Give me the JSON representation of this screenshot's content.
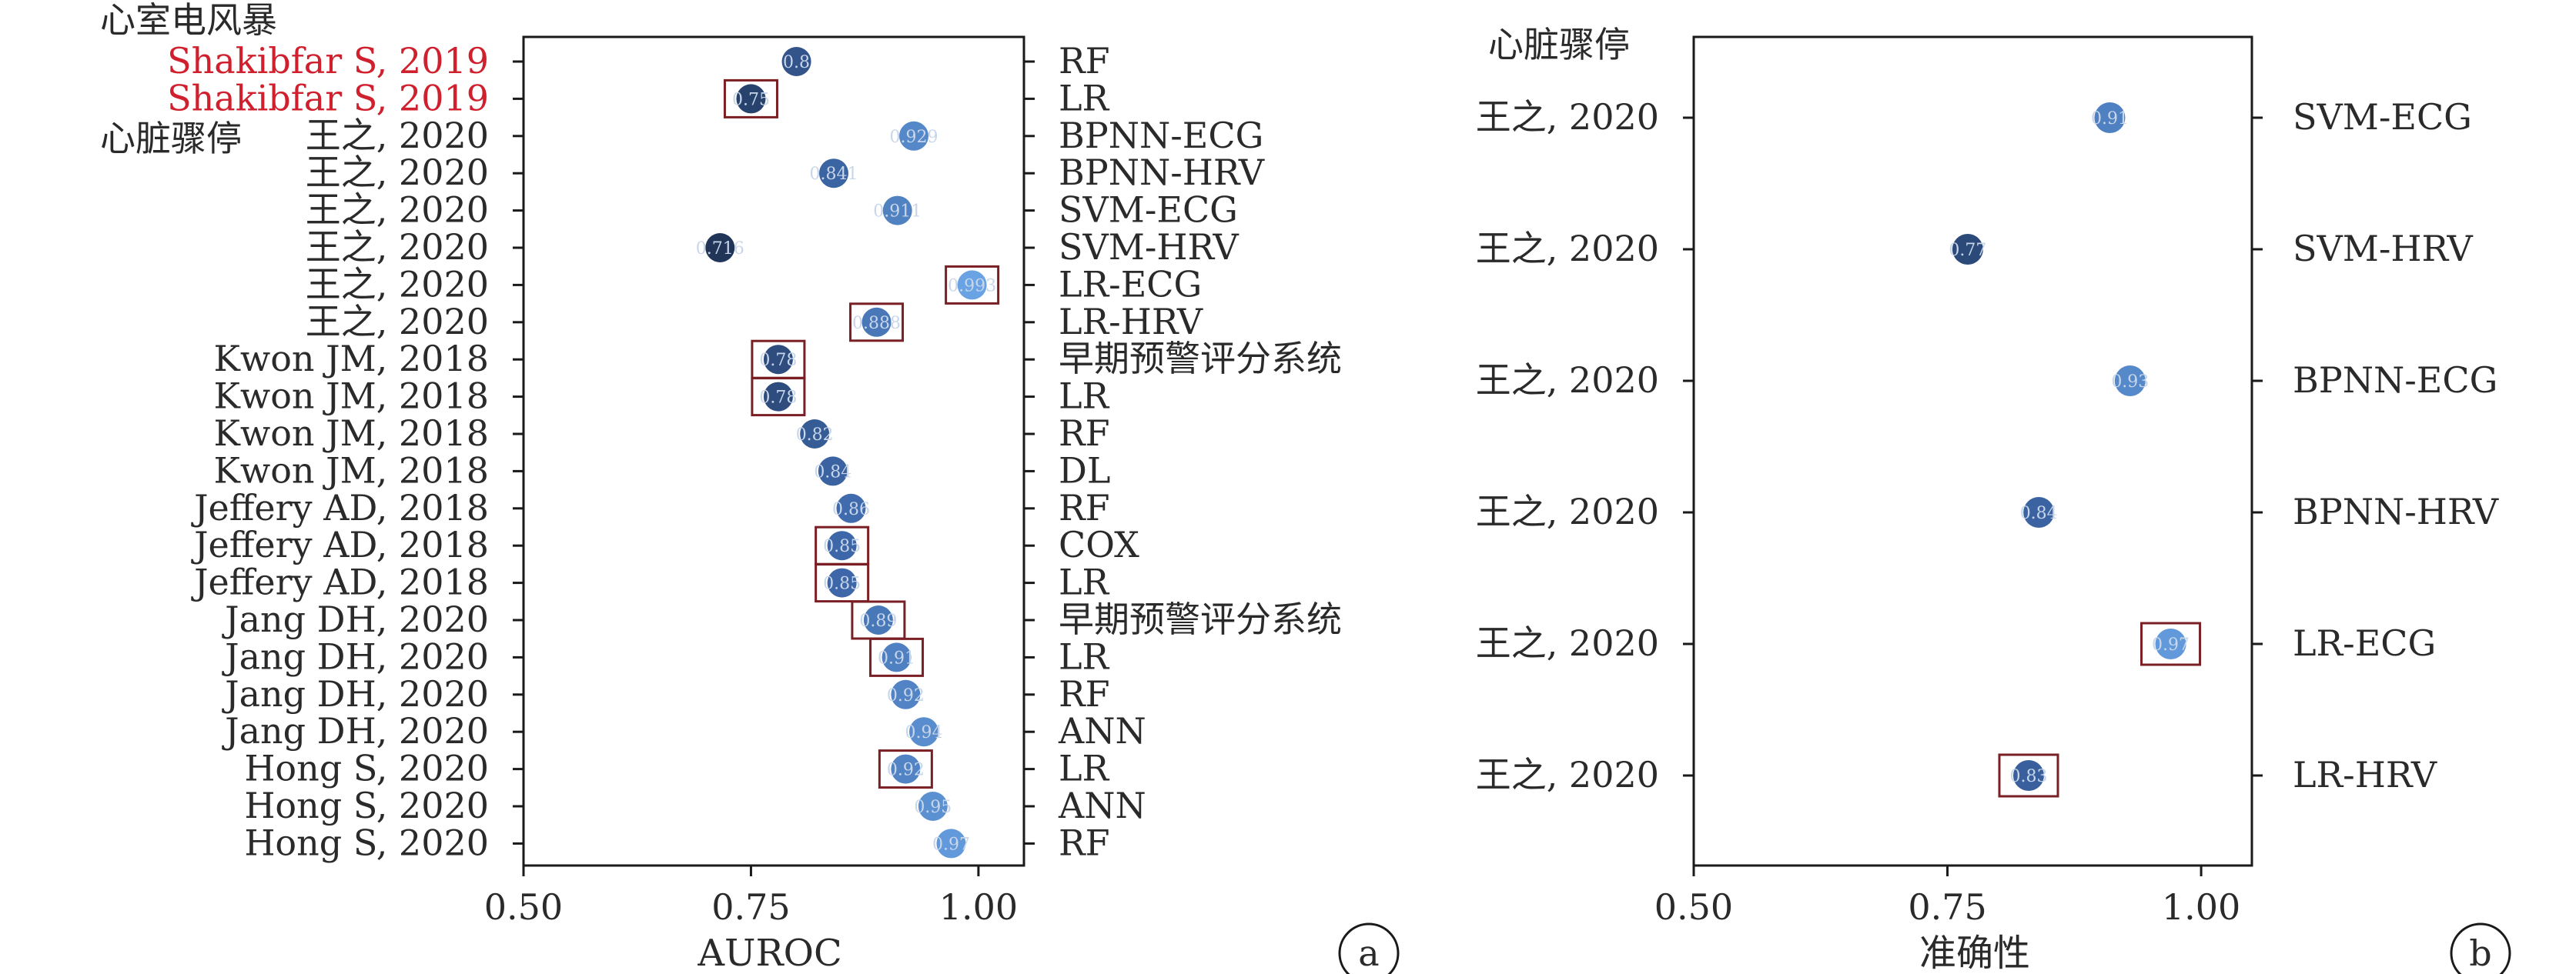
{
  "chart_data": [
    {
      "type": "scatter",
      "panel_label": "a",
      "xlabel": "AUROC",
      "xlim": [
        0.5,
        1.05
      ],
      "xticks": [
        "0.50",
        "0.75",
        "1.00"
      ],
      "group_labels": [
        "心室电风暴",
        "心脏骤停"
      ],
      "rows": [
        {
          "study": "Shakibfar S, 2019",
          "model": "RF",
          "value": 0.8,
          "label": "0.8",
          "boxed": false,
          "highlight": true
        },
        {
          "study": "Shakibfar S, 2019",
          "model": "LR",
          "value": 0.75,
          "label": "0.75",
          "boxed": true,
          "highlight": true
        },
        {
          "study": "王之, 2020",
          "model": "BPNN-ECG",
          "value": 0.929,
          "label": "0.929",
          "boxed": false,
          "highlight": false
        },
        {
          "study": "王之, 2020",
          "model": "BPNN-HRV",
          "value": 0.841,
          "label": "0.841",
          "boxed": false,
          "highlight": false
        },
        {
          "study": "王之, 2020",
          "model": "SVM-ECG",
          "value": 0.911,
          "label": "0.911",
          "boxed": false,
          "highlight": false
        },
        {
          "study": "王之, 2020",
          "model": "SVM-HRV",
          "value": 0.716,
          "label": "0.716",
          "boxed": false,
          "highlight": false
        },
        {
          "study": "王之, 2020",
          "model": "LR-ECG",
          "value": 0.993,
          "label": "0.993",
          "boxed": true,
          "highlight": false
        },
        {
          "study": "王之, 2020",
          "model": "LR-HRV",
          "value": 0.888,
          "label": "0.888",
          "boxed": true,
          "highlight": false
        },
        {
          "study": "Kwon JM, 2018",
          "model": "早期预警评分系统",
          "value": 0.78,
          "label": "0.78",
          "boxed": true,
          "highlight": false
        },
        {
          "study": "Kwon JM, 2018",
          "model": "LR",
          "value": 0.78,
          "label": "0.78",
          "boxed": true,
          "highlight": false
        },
        {
          "study": "Kwon JM, 2018",
          "model": "RF",
          "value": 0.82,
          "label": "0.82",
          "boxed": false,
          "highlight": false
        },
        {
          "study": "Kwon JM, 2018",
          "model": "DL",
          "value": 0.84,
          "label": "0.84",
          "boxed": false,
          "highlight": false
        },
        {
          "study": "Jeffery AD, 2018",
          "model": "RF",
          "value": 0.86,
          "label": "0.86",
          "boxed": false,
          "highlight": false
        },
        {
          "study": "Jeffery AD, 2018",
          "model": "COX",
          "value": 0.85,
          "label": "0.85",
          "boxed": true,
          "highlight": false
        },
        {
          "study": "Jeffery AD, 2018",
          "model": "LR",
          "value": 0.85,
          "label": "0.85",
          "boxed": true,
          "highlight": false
        },
        {
          "study": "Jang DH, 2020",
          "model": "早期预警评分系统",
          "value": 0.89,
          "label": "0.89",
          "boxed": true,
          "highlight": false
        },
        {
          "study": "Jang DH, 2020",
          "model": "LR",
          "value": 0.91,
          "label": "0.91",
          "boxed": true,
          "highlight": false
        },
        {
          "study": "Jang DH, 2020",
          "model": "RF",
          "value": 0.92,
          "label": "0.92",
          "boxed": false,
          "highlight": false
        },
        {
          "study": "Jang DH, 2020",
          "model": "ANN",
          "value": 0.94,
          "label": "0.94",
          "boxed": false,
          "highlight": false
        },
        {
          "study": "Hong S, 2020",
          "model": "LR",
          "value": 0.92,
          "label": "0.92",
          "boxed": true,
          "highlight": false
        },
        {
          "study": "Hong S, 2020",
          "model": "ANN",
          "value": 0.95,
          "label": "0.95",
          "boxed": false,
          "highlight": false
        },
        {
          "study": "Hong S, 2020",
          "model": "RF",
          "value": 0.97,
          "label": "0.97",
          "boxed": false,
          "highlight": false
        }
      ]
    },
    {
      "type": "scatter",
      "panel_label": "b",
      "xlabel": "准确性",
      "xlim": [
        0.5,
        1.05
      ],
      "xticks": [
        "0.50",
        "0.75",
        "1.00"
      ],
      "group_labels": [
        "心脏骤停"
      ],
      "rows": [
        {
          "study": "王之, 2020",
          "model": "SVM-ECG",
          "value": 0.91,
          "label": "0.91",
          "boxed": false,
          "highlight": false
        },
        {
          "study": "王之, 2020",
          "model": "SVM-HRV",
          "value": 0.77,
          "label": "0.77",
          "boxed": false,
          "highlight": false
        },
        {
          "study": "王之, 2020",
          "model": "BPNN-ECG",
          "value": 0.93,
          "label": "0.93",
          "boxed": false,
          "highlight": false
        },
        {
          "study": "王之, 2020",
          "model": "BPNN-HRV",
          "value": 0.84,
          "label": "0.84",
          "boxed": false,
          "highlight": false
        },
        {
          "study": "王之, 2020",
          "model": "LR-ECG",
          "value": 0.97,
          "label": "0.97",
          "boxed": true,
          "highlight": false
        },
        {
          "study": "王之, 2020",
          "model": "LR-HRV",
          "value": 0.83,
          "label": "0.83",
          "boxed": true,
          "highlight": false
        }
      ]
    }
  ],
  "colors": {
    "axis": "#1a1a1a",
    "text": "#2a2a2a",
    "highlight_text": "#d0202e",
    "box": "#7a1f24",
    "dot_low": "#1c2f4f",
    "dot_mid": "#3d67a8",
    "dot_high": "#6ba6e6",
    "dot_label": "#c8d6ea"
  }
}
